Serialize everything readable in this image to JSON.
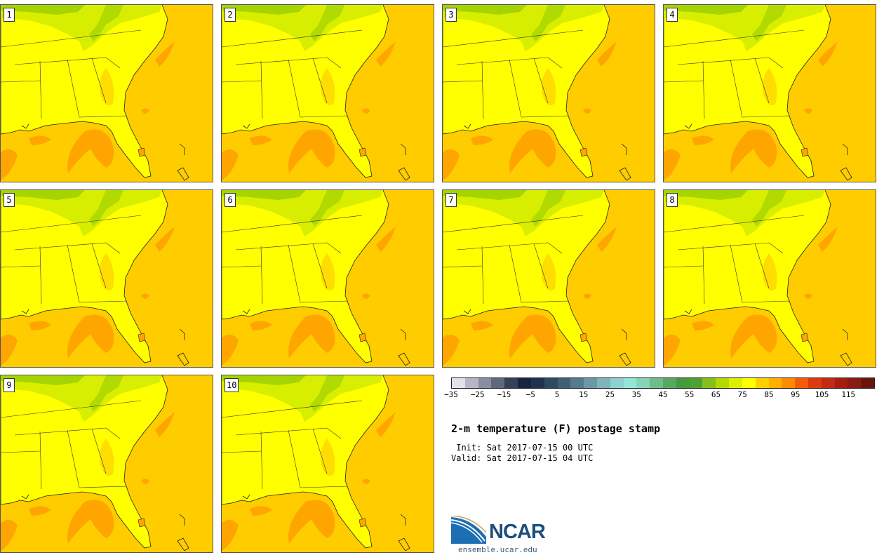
{
  "members": [
    "1",
    "2",
    "3",
    "4",
    "5",
    "6",
    "7",
    "8",
    "9",
    "10"
  ],
  "colorbar": {
    "colors": [
      "#e2e2ec",
      "#b6b6c8",
      "#8a8ca2",
      "#60687e",
      "#34405a",
      "#182440",
      "#1e3350",
      "#2e4a62",
      "#405f76",
      "#557a8c",
      "#6c97a6",
      "#80b4bc",
      "#8ed2d0",
      "#92e6d8",
      "#86d4b6",
      "#70bc8a",
      "#58a860",
      "#469a3c",
      "#4ca232",
      "#86be1a",
      "#b4d800",
      "#dcef00",
      "#ffff00",
      "#ffd000",
      "#ffb000",
      "#ff8c00",
      "#f55c0a",
      "#dd3a10",
      "#c22a12",
      "#a51e10",
      "#8a1a12",
      "#6a1410"
    ],
    "tick_labels": [
      "-35",
      "-25",
      "-15",
      "-5",
      "5",
      "15",
      "25",
      "35",
      "45",
      "55",
      "65",
      "75",
      "85",
      "95",
      "105",
      "115"
    ]
  },
  "title": "2-m temperature (F) postage stamp",
  "init": " Init: Sat 2017-07-15 00 UTC",
  "valid": "Valid: Sat 2017-07-15 04 UTC",
  "logo": {
    "name": "NCAR",
    "site": "ensemble.ucar.edu"
  },
  "map_colors": {
    "ocean": "#ffcc00",
    "land_warm": "#ffff00",
    "land_cool": "#d8ee00",
    "land_cooler": "#a6d400",
    "warm": "#ffa500"
  }
}
